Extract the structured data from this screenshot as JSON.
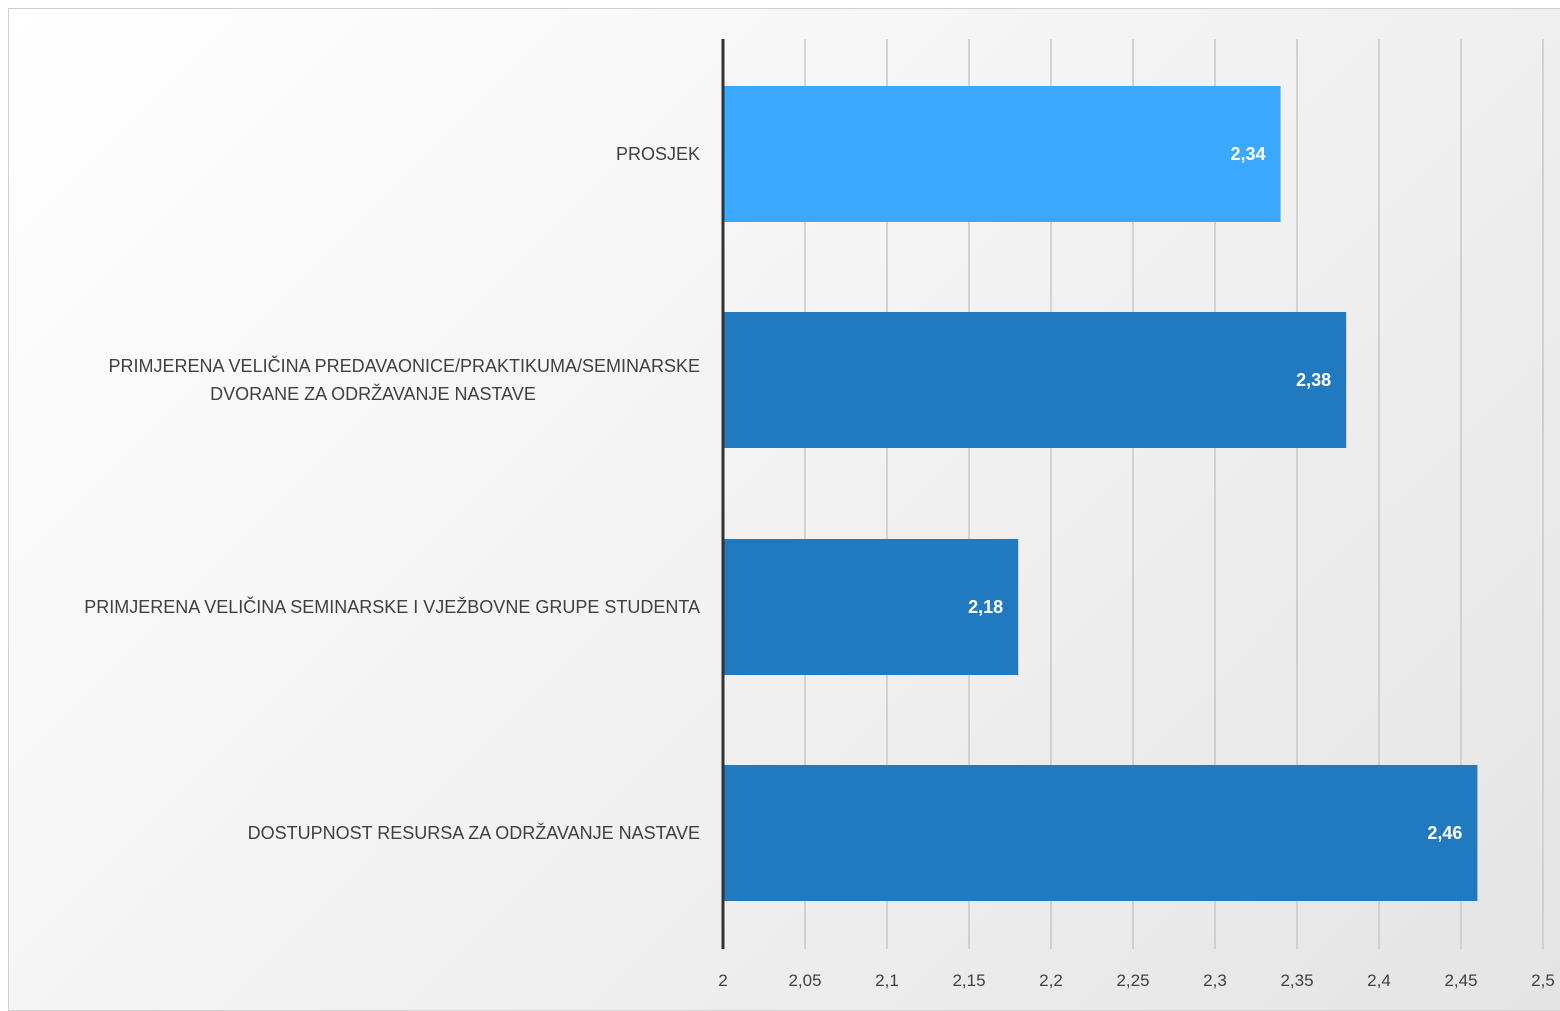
{
  "chart_data": {
    "type": "bar",
    "orientation": "horizontal",
    "title": "",
    "xlabel": "",
    "ylabel": "",
    "xlim": [
      2,
      2.5
    ],
    "x_ticks": [
      2,
      2.05,
      2.1,
      2.15,
      2.2,
      2.25,
      2.3,
      2.35,
      2.4,
      2.45,
      2.5
    ],
    "x_tick_labels": [
      "2",
      "2,05",
      "2,1",
      "2,15",
      "2,2",
      "2,25",
      "2,3",
      "2,35",
      "2,4",
      "2,45",
      "2,5"
    ],
    "grid": "vertical",
    "legend": "none",
    "categories": [
      {
        "lines": [
          "PROSJEK"
        ],
        "value": 2.34,
        "value_label": "2,34",
        "color": "#3aa8ff"
      },
      {
        "lines": [
          "PRIMJERENA VELIČINA PREDAVAONICE/PRAKTIKUMA/SEMINARSKE",
          "DVORANE ZA ODRŽAVANJE NASTAVE"
        ],
        "value": 2.38,
        "value_label": "2,38",
        "color": "#2179bf"
      },
      {
        "lines": [
          "PRIMJERENA VELIČINA SEMINARSKE I VJEŽBOVNE GRUPE STUDENTA"
        ],
        "value": 2.18,
        "value_label": "2,18",
        "color": "#2179bf"
      },
      {
        "lines": [
          "DOSTUPNOST RESURSA ZA ODRŽAVANJE NASTAVE"
        ],
        "value": 2.46,
        "value_label": "2,46",
        "color": "#2179bf"
      }
    ],
    "colors": {
      "highlight": "#3aa8ff",
      "bar": "#2179bf",
      "axis": "#333333",
      "grid": "#c8c8c8",
      "text": "#404040"
    }
  }
}
